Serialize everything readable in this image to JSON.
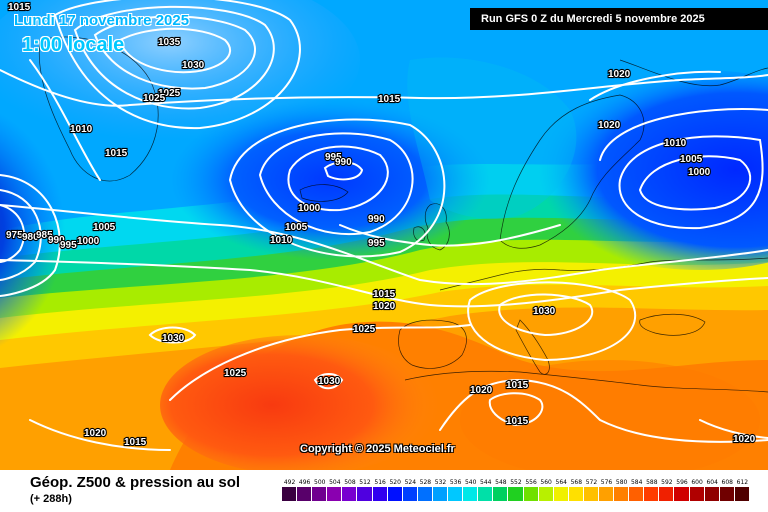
{
  "header": {
    "date": "Lundi 17 novembre 2025",
    "time": "1:00 locale",
    "run": "Run GFS 0 Z du Mercredi 5 novembre 2025"
  },
  "copyright": "Copyright © 2025 Meteociel.fr",
  "footer": {
    "title": "Géop. Z500 & pression au sol",
    "step": "(+ 288h)"
  },
  "legend": {
    "values": [
      "492",
      "496",
      "500",
      "504",
      "508",
      "512",
      "516",
      "520",
      "524",
      "528",
      "532",
      "536",
      "540",
      "544",
      "548",
      "552",
      "556",
      "560",
      "564",
      "568",
      "572",
      "576",
      "580",
      "584",
      "588",
      "592",
      "596",
      "600",
      "604",
      "608",
      "612"
    ],
    "colors": [
      "#3a0040",
      "#58006a",
      "#70008f",
      "#8a00b0",
      "#7800d0",
      "#4f00e0",
      "#3000f0",
      "#0010ff",
      "#0040ff",
      "#0070ff",
      "#00a0ff",
      "#00c8ff",
      "#00e8e8",
      "#00e0a8",
      "#00d060",
      "#20d020",
      "#70e000",
      "#b8f000",
      "#f0f000",
      "#ffe000",
      "#ffc000",
      "#ffa000",
      "#ff8000",
      "#ff6000",
      "#ff3c00",
      "#f02000",
      "#d00000",
      "#b00000",
      "#900000",
      "#700000",
      "#500000"
    ]
  },
  "isobars": [
    {
      "label": "1015",
      "at": "top-left corner"
    },
    {
      "label": "1035",
      "at": "south Greenland"
    },
    {
      "label": "1030",
      "at": "south Greenland"
    },
    {
      "label": "1025",
      "at": "south Greenland"
    },
    {
      "label": "1025",
      "at": "south Greenland"
    },
    {
      "label": "1010",
      "at": "west Greenland"
    },
    {
      "label": "1015",
      "at": "Labrador Sea"
    },
    {
      "label": "1015",
      "at": "north Atlantic"
    },
    {
      "label": "1020",
      "at": "Scandinavia north"
    },
    {
      "label": "1020",
      "at": "Barents Sea"
    },
    {
      "label": "995",
      "at": "Iceland low"
    },
    {
      "label": "990",
      "at": "Iceland low"
    },
    {
      "label": "1000",
      "at": "Iceland low"
    },
    {
      "label": "1005",
      "at": "Iceland low"
    },
    {
      "label": "990",
      "at": "west of Scotland"
    },
    {
      "label": "995",
      "at": "west of Ireland"
    },
    {
      "label": "1010",
      "at": "mid Atlantic"
    },
    {
      "label": "1005",
      "at": "Labrador"
    },
    {
      "label": "975",
      "at": "Labrador low"
    },
    {
      "label": "980",
      "at": "Labrador low"
    },
    {
      "label": "985",
      "at": "Labrador low"
    },
    {
      "label": "990",
      "at": "Labrador low"
    },
    {
      "label": "995",
      "at": "Labrador low"
    },
    {
      "label": "1000",
      "at": "Labrador low"
    },
    {
      "label": "1010",
      "at": "Russia low"
    },
    {
      "label": "1005",
      "at": "Russia low"
    },
    {
      "label": "1000",
      "at": "Russia low"
    },
    {
      "label": "1015",
      "at": "Bay of Biscay"
    },
    {
      "label": "1020",
      "at": "Bay of Biscay"
    },
    {
      "label": "1025",
      "at": "Iberian Atlantic"
    },
    {
      "label": "1030",
      "at": "central Europe high"
    },
    {
      "label": "1030",
      "at": "mid Atlantic high"
    },
    {
      "label": "1025",
      "at": "Azores"
    },
    {
      "label": "1030",
      "at": "Azores high"
    },
    {
      "label": "1020",
      "at": "north Africa"
    },
    {
      "label": "1015",
      "at": "Tunisia"
    },
    {
      "label": "1015",
      "at": "Libya"
    },
    {
      "label": "1020",
      "at": "Atlantic south-west"
    },
    {
      "label": "1015",
      "at": "Atlantic south-west"
    },
    {
      "label": "1020",
      "at": "Egypt"
    }
  ]
}
